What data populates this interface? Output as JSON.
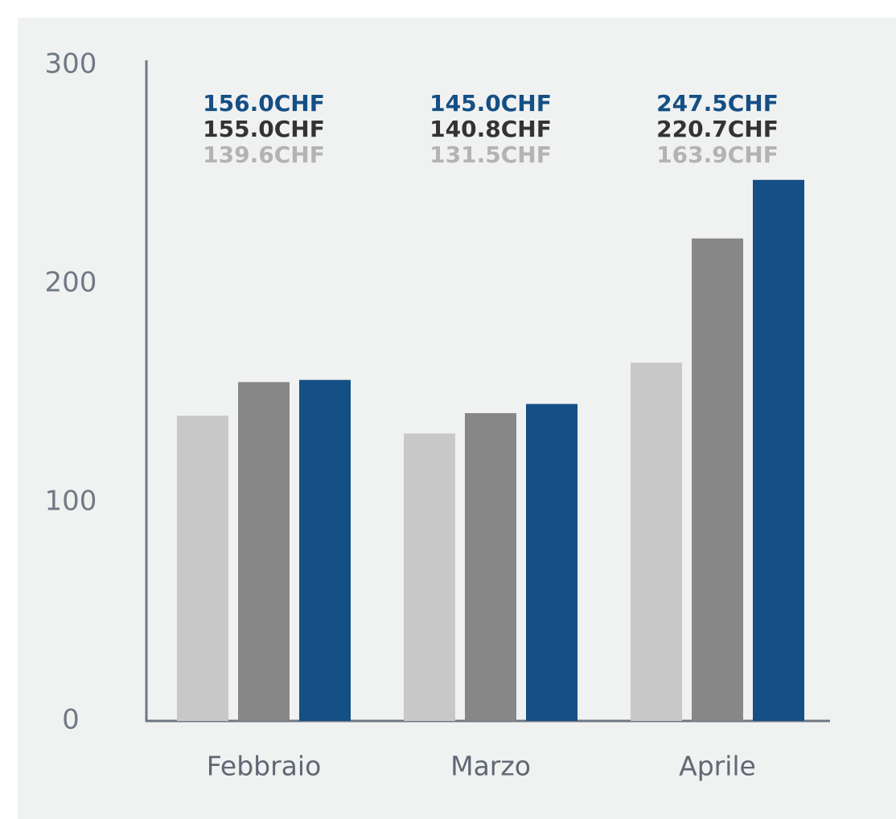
{
  "chart_data": {
    "type": "bar",
    "categories": [
      "Febbraio",
      "Marzo",
      "Aprile"
    ],
    "series": [
      {
        "color": "#c8c8c8",
        "value_label_color": "#b3b3b3",
        "values": [
          139.6,
          131.5,
          163.9
        ],
        "value_labels": [
          "139.6CHF",
          "131.5CHF",
          "163.9CHF"
        ]
      },
      {
        "color": "#878787",
        "value_label_color": "#333333",
        "values": [
          155.0,
          140.8,
          220.7
        ],
        "value_labels": [
          "155.0CHF",
          "140.8CHF",
          "220.7CHF"
        ]
      },
      {
        "color": "#144f85",
        "value_label_color": "#144f85",
        "values": [
          156.0,
          145.0,
          247.5
        ],
        "value_labels": [
          "156.0CHF",
          "145.0CHF",
          "247.5CHF"
        ]
      }
    ],
    "ylim": [
      0,
      300
    ],
    "yticks": [
      0,
      100,
      200,
      300
    ],
    "grid": false
  }
}
